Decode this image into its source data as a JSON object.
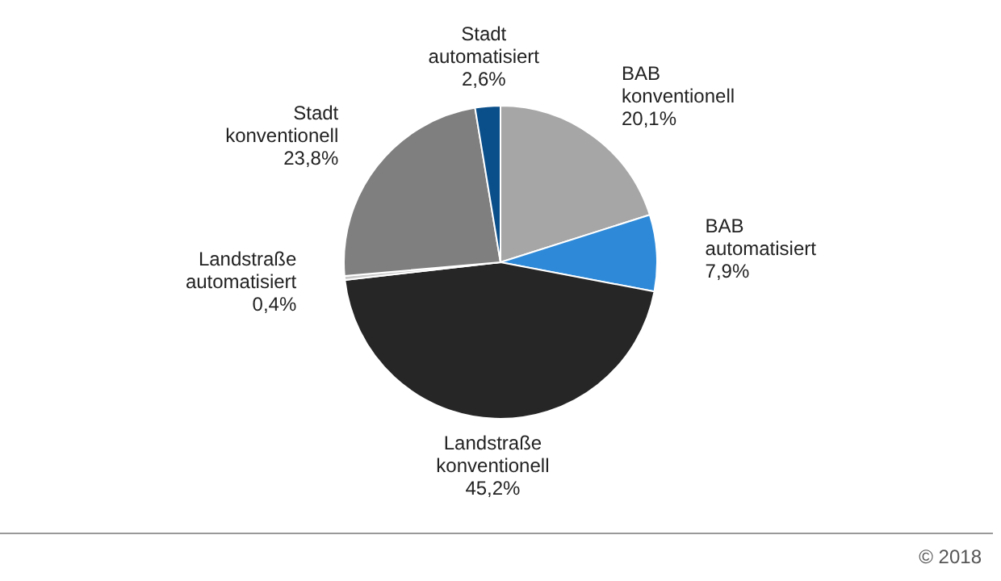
{
  "chart_data": {
    "type": "pie",
    "categories": [
      "BAB konventionell",
      "BAB automatisiert",
      "Landstraße konventionell",
      "Landstraße automatisiert",
      "Stadt konventionell",
      "Stadt automatisiert"
    ],
    "values": [
      20.1,
      7.9,
      45.2,
      0.4,
      23.8,
      2.6
    ],
    "colors": [
      "#a6a6a6",
      "#2e8ad8",
      "#262626",
      "#c8c8c8",
      "#7f7f7f",
      "#0b4f8a"
    ],
    "value_labels": [
      "20,1%",
      "7,9%",
      "45,2%",
      "0,4%",
      "23,8%",
      "2,6%"
    ],
    "legend": false,
    "annotations": [
      "© 2018"
    ]
  }
}
